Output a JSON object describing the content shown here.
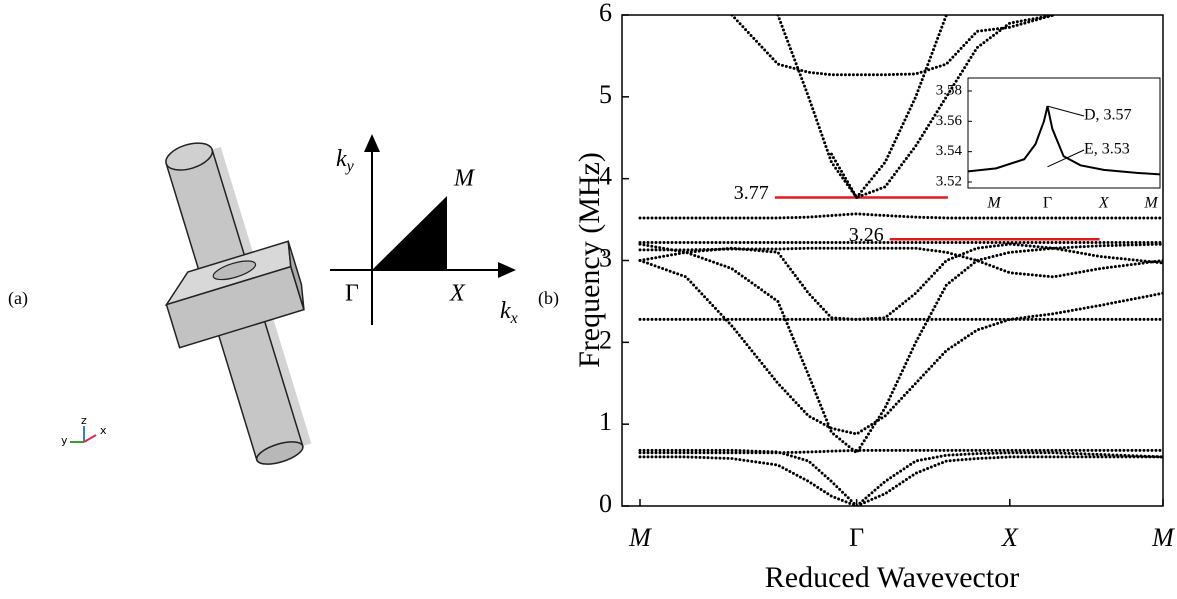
{
  "panel_a": {
    "label": "(a)",
    "triad": {
      "y": "y",
      "z": "z",
      "x": "x"
    },
    "bz": {
      "ky": {
        "base": "k",
        "sub": "y"
      },
      "kx": {
        "base": "k",
        "sub": "x"
      },
      "M": "M",
      "Gamma": "Γ",
      "X": "X"
    }
  },
  "chart_data": {
    "type": "dotted-line",
    "panel_label": "(b)",
    "y_label": "Frequency (MHz)",
    "x_label": "Reduced Wavevector",
    "xlim": [
      0,
      3.414
    ],
    "ylim": [
      0,
      6
    ],
    "xticks": [
      {
        "value": 0,
        "label": "M"
      },
      {
        "value": 1.414,
        "label": "Γ"
      },
      {
        "value": 2.414,
        "label": "X"
      },
      {
        "value": 3.414,
        "label": "M"
      }
    ],
    "yticks": [
      0,
      1,
      2,
      3,
      4,
      5,
      6
    ],
    "color": "#000000",
    "x": [
      0,
      0.3,
      0.6,
      0.9,
      1.1,
      1.25,
      1.414,
      1.6,
      1.8,
      2.0,
      2.2,
      2.414,
      2.7,
      3.0,
      3.414
    ],
    "bands": [
      {
        "values": [
          0.6,
          0.6,
          0.58,
          0.5,
          0.3,
          0.12,
          0,
          0.15,
          0.4,
          0.55,
          0.58,
          0.6,
          0.6,
          0.6,
          0.6
        ]
      },
      {
        "values": [
          0.65,
          0.65,
          0.65,
          0.65,
          0.66,
          0.67,
          0.68,
          0.68,
          0.68,
          0.68,
          0.68,
          0.68,
          0.68,
          0.68,
          0.68
        ]
      },
      {
        "values": [
          0.68,
          0.68,
          0.68,
          0.66,
          0.55,
          0.3,
          0,
          0.3,
          0.55,
          0.62,
          0.64,
          0.65,
          0.65,
          0.63,
          0.6
        ]
      },
      {
        "values": [
          3.0,
          2.8,
          2.2,
          1.5,
          1.1,
          0.95,
          0.88,
          1.1,
          1.5,
          1.9,
          2.15,
          2.28,
          2.35,
          2.45,
          2.6
        ]
      },
      {
        "values": [
          2.28,
          2.28,
          2.28,
          2.28,
          2.28,
          2.28,
          2.28,
          2.28,
          2.28,
          2.28,
          2.28,
          2.28,
          2.28,
          2.28,
          2.28
        ]
      },
      {
        "values": [
          3.2,
          3.1,
          2.9,
          2.5,
          1.6,
          0.9,
          0.65,
          1.2,
          2.0,
          2.7,
          3.0,
          3.1,
          3.15,
          3.18,
          3.2
        ]
      },
      {
        "values": [
          3.13,
          3.13,
          3.14,
          3.14,
          3.15,
          3.15,
          3.15,
          3.15,
          3.15,
          3.1,
          3.0,
          2.85,
          2.8,
          2.9,
          3.0
        ]
      },
      {
        "values": [
          3.22,
          3.22,
          3.22,
          3.22,
          3.22,
          3.22,
          3.22,
          3.22,
          3.22,
          3.22,
          3.22,
          3.22,
          3.22,
          3.22,
          3.22
        ]
      },
      {
        "values": [
          3.0,
          3.1,
          3.15,
          3.1,
          2.6,
          2.3,
          2.28,
          2.3,
          2.6,
          3.0,
          3.15,
          3.2,
          3.15,
          3.05,
          2.97
        ]
      },
      {
        "values": [
          3.52,
          3.52,
          3.52,
          3.52,
          3.53,
          3.55,
          3.57,
          3.55,
          3.53,
          3.52,
          3.52,
          3.52,
          3.52,
          3.52,
          3.52
        ]
      },
      {
        "values": [
          null,
          null,
          null,
          6.0,
          5.0,
          4.2,
          3.77,
          4.2,
          5.0,
          6.0,
          null,
          null,
          null,
          null,
          null
        ]
      },
      {
        "values": [
          null,
          null,
          6.0,
          5.4,
          5.3,
          5.27,
          5.27,
          5.27,
          5.28,
          5.4,
          5.8,
          5.85,
          6.0,
          null,
          null
        ]
      },
      {
        "values": [
          null,
          null,
          null,
          null,
          null,
          4.3,
          3.77,
          3.9,
          4.4,
          5.0,
          5.6,
          5.9,
          6.0,
          null,
          null
        ]
      }
    ],
    "annotations": [
      {
        "text": "3.77",
        "value": 3.77,
        "x": [
          0.88,
          2.01
        ],
        "color": "#e31a1c"
      },
      {
        "text": "3.26",
        "value": 3.26,
        "x": [
          1.63,
          3.0
        ],
        "color": "#e31a1c"
      }
    ],
    "inset": {
      "xlim": [
        0,
        3.414
      ],
      "ylim": [
        3.52,
        3.58
      ],
      "xticks": [
        {
          "value": 0,
          "label": "M"
        },
        {
          "value": 1.414,
          "label": "Γ"
        },
        {
          "value": 2.414,
          "label": "X"
        },
        {
          "value": 3.414,
          "label": "M"
        }
      ],
      "yticks": [
        {
          "value": 3.52,
          "label": "3.52"
        },
        {
          "value": 3.54,
          "label": "3.54"
        },
        {
          "value": 3.56,
          "label": "3.56"
        },
        {
          "value": 3.58,
          "label": "3.58"
        }
      ],
      "x": [
        0,
        0.5,
        1.0,
        1.2,
        1.35,
        1.414,
        1.5,
        1.7,
        2.0,
        2.414,
        3.0,
        3.414
      ],
      "bands": [
        {
          "values": [
            3.527,
            3.529,
            3.535,
            3.545,
            3.56,
            3.57,
            3.555,
            3.537,
            3.531,
            3.528,
            3.526,
            3.525
          ]
        }
      ],
      "annotations": [
        {
          "text": "D, 3.57",
          "value": 3.57
        },
        {
          "text": "E, 3.53",
          "value": 3.53
        }
      ]
    }
  }
}
